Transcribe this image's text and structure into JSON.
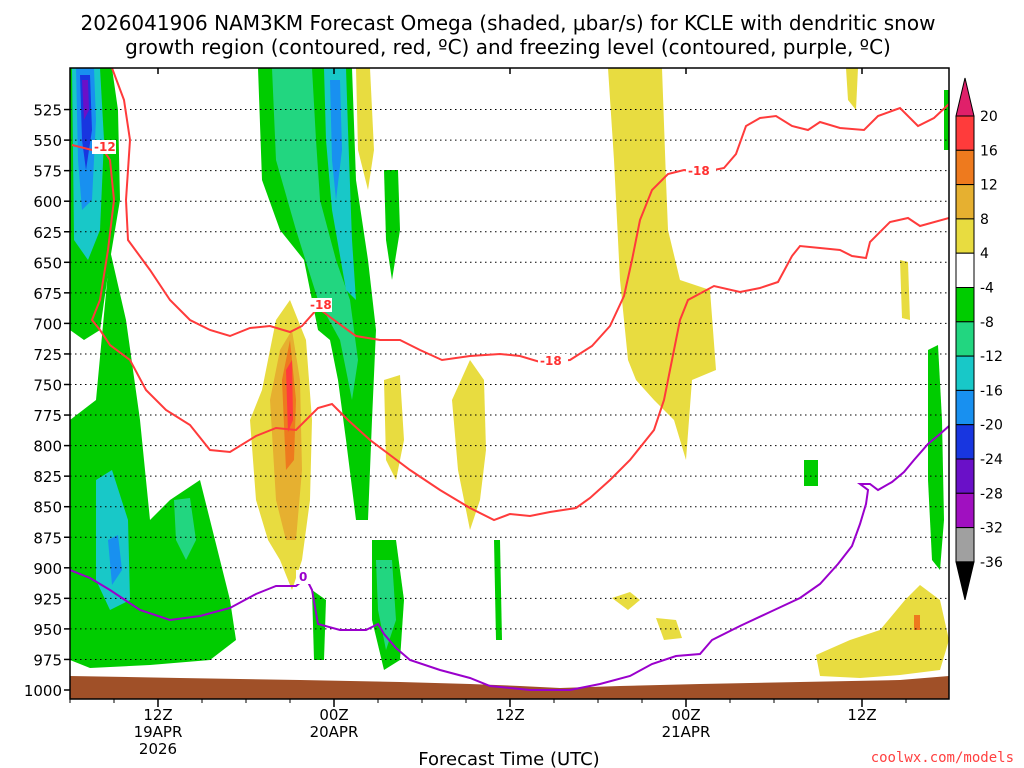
{
  "chart_data": {
    "type": "heatmap",
    "title_line1": "2026041906 NAM3KM Forecast Omega (shaded, μbar/s) for KCLE with dendritic snow",
    "title_line2": "growth region (contoured, red, ºC) and freezing level (contoured, purple, ºC)",
    "xlabel": "Forecast Time (UTC)",
    "credit": "coolwx.com/models",
    "x_range_hours": [
      0,
      60
    ],
    "y_range_mb": [
      500,
      1000
    ],
    "y_ticks": [
      525,
      550,
      575,
      600,
      625,
      650,
      675,
      700,
      725,
      750,
      775,
      800,
      825,
      850,
      875,
      900,
      925,
      950,
      975,
      1000
    ],
    "x_ticks": [
      {
        "hour": 6,
        "line1": "12Z",
        "line2": "19APR",
        "line3": "2026"
      },
      {
        "hour": 18,
        "line1": "00Z",
        "line2": "20APR",
        "line3": ""
      },
      {
        "hour": 30,
        "line1": "12Z",
        "line2": "",
        "line3": ""
      },
      {
        "hour": 42,
        "line1": "00Z",
        "line2": "21APR",
        "line3": ""
      },
      {
        "hour": 54,
        "line1": "12Z",
        "line2": "",
        "line3": ""
      }
    ],
    "colorbar": {
      "labels": [
        "20",
        "16",
        "12",
        "8",
        "4",
        "-4",
        "-8",
        "-12",
        "-16",
        "-20",
        "-24",
        "-28",
        "-32",
        "-36"
      ],
      "colors": [
        "#e0206a",
        "#ff3b3b",
        "#ee7a1e",
        "#e6b030",
        "#e8dc40",
        "#ffffff",
        "#00cc00",
        "#22d680",
        "#18c8c8",
        "#1890f0",
        "#1836e0",
        "#6a10c8",
        "#a010c0",
        "#a0a0a0",
        "#000000"
      ]
    },
    "red_contour_labels": [
      "-12",
      "-18",
      "-18",
      "-18"
    ],
    "purple_contour_labels": [
      "0"
    ],
    "terrain_color": "#a05028"
  }
}
